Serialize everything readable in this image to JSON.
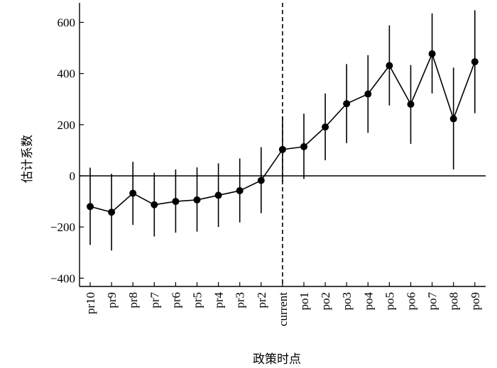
{
  "chart_data": {
    "type": "line",
    "title": "",
    "xlabel": "政策时点",
    "ylabel": "估计系数",
    "categories": [
      "pr10",
      "pr9",
      "pr8",
      "pr7",
      "pr6",
      "pr5",
      "pr4",
      "pr3",
      "pr2",
      "current",
      "po1",
      "po2",
      "po3",
      "po4",
      "po5",
      "po6",
      "po7",
      "po8",
      "po9"
    ],
    "series": [
      {
        "values": [
          -120,
          -142,
          -68,
          -113,
          -100,
          -94,
          -76,
          -58,
          -18,
          103,
          114,
          191,
          282,
          320,
          431,
          280,
          477,
          223,
          446
        ],
        "ci_low": [
          -270,
          -292,
          -192,
          -237,
          -222,
          -218,
          -200,
          -182,
          -146,
          -24,
          -12,
          61,
          128,
          168,
          275,
          125,
          322,
          25,
          245
        ],
        "ci_high": [
          32,
          8,
          55,
          12,
          25,
          33,
          49,
          68,
          112,
          232,
          243,
          322,
          437,
          472,
          588,
          433,
          635,
          423,
          647
        ]
      }
    ],
    "ylim": [
      -420,
      670
    ],
    "yticks": [
      -400,
      -200,
      0,
      200,
      400,
      600
    ],
    "ytick_labels": [
      "−400",
      "−200",
      "0",
      "200",
      "400",
      "600"
    ],
    "reference_line_y": 0,
    "reference_line_x": "current",
    "grid": false,
    "colors": {
      "series": "#000000",
      "axis": "#000000"
    }
  }
}
